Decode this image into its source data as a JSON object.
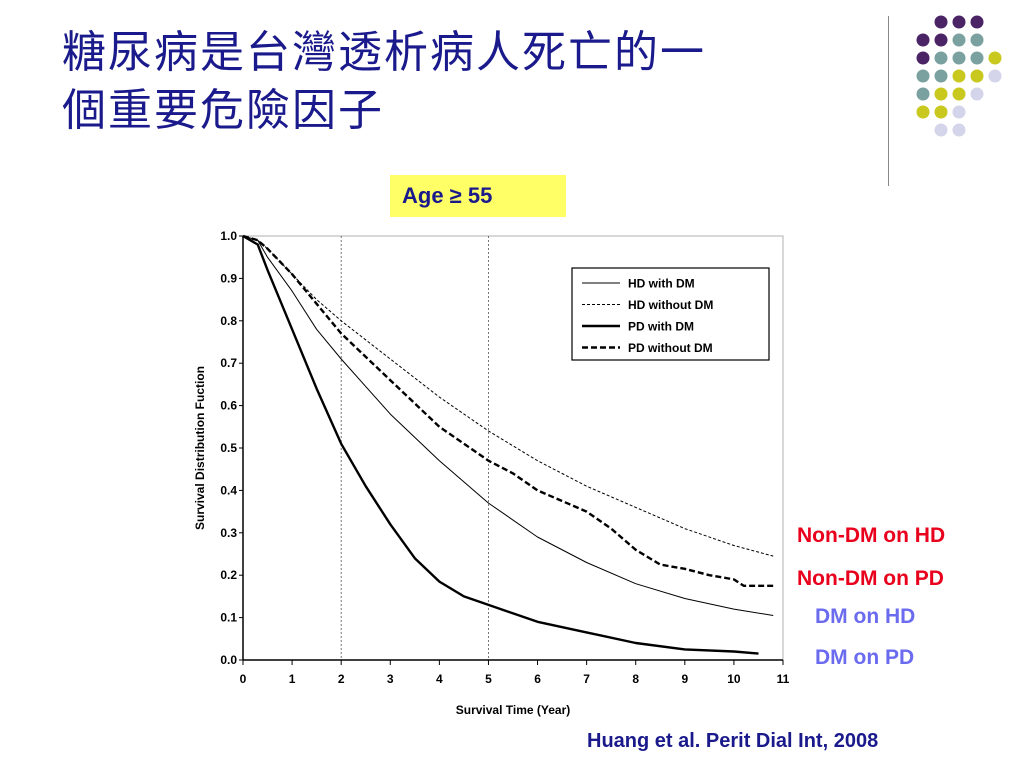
{
  "slide": {
    "title_line1": "糖尿病是台灣透析病人死亡的一",
    "title_line2": "個重要危險因子",
    "age_badge": "Age ≥ 55",
    "annotations": [
      {
        "text": "Non-DM on HD",
        "color": "#e8001c"
      },
      {
        "text": "Non-DM on PD",
        "color": "#e8001c"
      },
      {
        "text": "DM on HD",
        "color": "#6b6bf0"
      },
      {
        "text": "DM on PD",
        "color": "#6b6bf0"
      }
    ],
    "citation": "Huang et al. Perit Dial Int, 2008",
    "decor_colors": {
      "purple": "#4b2466",
      "teal": "#7aa0a0",
      "olive": "#c8c81e",
      "lavender": "#d4d4ea"
    }
  },
  "chart_data": {
    "type": "line",
    "xlabel": "Survival Time (Year)",
    "ylabel": "Survival Distribution Fuction",
    "xlim": [
      0,
      11
    ],
    "ylim": [
      0,
      1.0
    ],
    "xticks": [
      "0",
      "1",
      "2",
      "3",
      "4",
      "5",
      "6",
      "7",
      "8",
      "9",
      "10",
      "11"
    ],
    "yticks": [
      "0.0",
      "0.1",
      "0.2",
      "0.3",
      "0.4",
      "0.5",
      "0.6",
      "0.7",
      "0.8",
      "0.9",
      "1.0"
    ],
    "reference_lines_x": [
      2,
      5
    ],
    "legend_position": "top-right",
    "series": [
      {
        "name": "HD with DM",
        "style": "thin-solid",
        "x": [
          0,
          0.3,
          0.5,
          1,
          1.5,
          2,
          3,
          4,
          5,
          6,
          7,
          8,
          9,
          10,
          10.8
        ],
        "y": [
          1.0,
          0.99,
          0.95,
          0.87,
          0.78,
          0.71,
          0.58,
          0.47,
          0.37,
          0.29,
          0.23,
          0.18,
          0.145,
          0.12,
          0.105
        ]
      },
      {
        "name": "HD without DM",
        "style": "thin-dashed",
        "x": [
          0,
          0.3,
          0.5,
          1,
          1.5,
          2,
          3,
          4,
          5,
          6,
          7,
          8,
          9,
          10,
          10.8
        ],
        "y": [
          1.0,
          0.99,
          0.97,
          0.91,
          0.85,
          0.8,
          0.71,
          0.62,
          0.54,
          0.47,
          0.41,
          0.36,
          0.31,
          0.27,
          0.245
        ]
      },
      {
        "name": "PD with DM",
        "style": "thick-solid",
        "x": [
          0,
          0.3,
          0.5,
          1,
          1.5,
          2,
          2.5,
          3,
          3.5,
          4,
          4.5,
          5,
          6,
          7,
          8,
          9,
          10,
          10.5
        ],
        "y": [
          1.0,
          0.98,
          0.92,
          0.78,
          0.64,
          0.51,
          0.41,
          0.32,
          0.24,
          0.185,
          0.15,
          0.13,
          0.09,
          0.065,
          0.04,
          0.025,
          0.02,
          0.015
        ]
      },
      {
        "name": "PD without DM",
        "style": "thick-dashed",
        "x": [
          0,
          0.3,
          0.5,
          1,
          1.5,
          2,
          3,
          4,
          5,
          5.5,
          6,
          7,
          7.5,
          8,
          8.5,
          9,
          9.5,
          10,
          10.2,
          10.8
        ],
        "y": [
          1.0,
          0.99,
          0.97,
          0.91,
          0.84,
          0.77,
          0.66,
          0.55,
          0.47,
          0.44,
          0.4,
          0.35,
          0.31,
          0.26,
          0.225,
          0.215,
          0.2,
          0.19,
          0.175,
          0.175
        ]
      }
    ]
  }
}
